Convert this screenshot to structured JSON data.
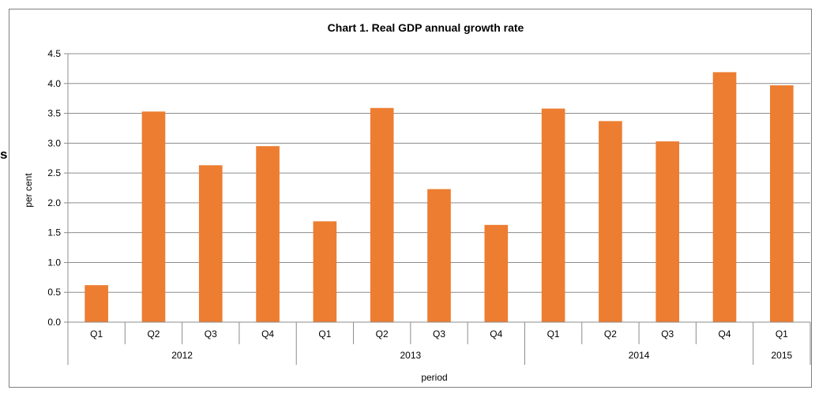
{
  "stray_glyph": "s",
  "chart_data": {
    "type": "bar",
    "title": "Chart 1. Real GDP annual growth rate",
    "xlabel": "period",
    "ylabel": "per cent",
    "ylim": [
      0,
      4.5
    ],
    "yticks": [
      "0.0",
      "0.5",
      "1.0",
      "1.5",
      "2.0",
      "2.5",
      "3.0",
      "3.5",
      "4.0",
      "4.5"
    ],
    "categories": [
      "Q1",
      "Q2",
      "Q3",
      "Q4",
      "Q1",
      "Q2",
      "Q3",
      "Q4",
      "Q1",
      "Q2",
      "Q3",
      "Q4",
      "Q1"
    ],
    "groups": [
      {
        "label": "2012",
        "count": 4
      },
      {
        "label": "2013",
        "count": 4
      },
      {
        "label": "2014",
        "count": 4
      },
      {
        "label": "2015",
        "count": 1
      }
    ],
    "values": [
      0.62,
      3.53,
      2.63,
      2.95,
      1.69,
      3.59,
      2.23,
      1.63,
      3.58,
      3.37,
      3.03,
      4.19,
      3.97
    ],
    "bar_color": "#ed7d31",
    "grid": true,
    "legend": "none"
  }
}
